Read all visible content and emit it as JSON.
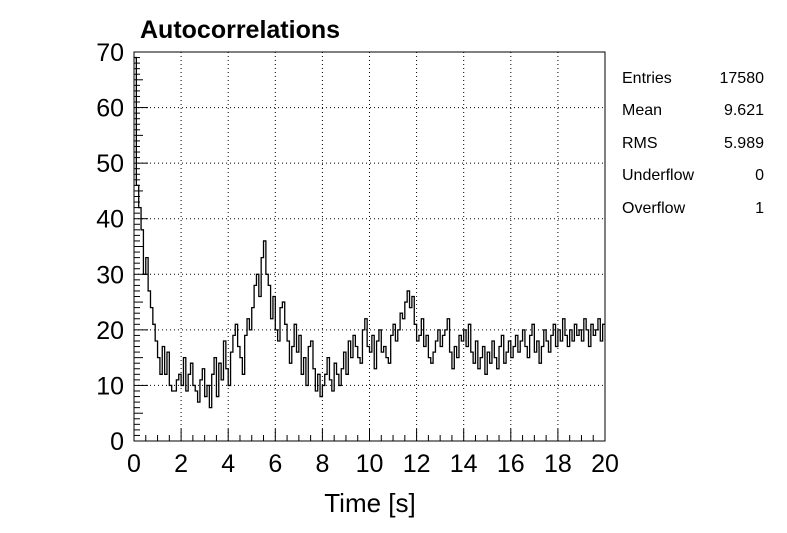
{
  "chart_data": {
    "type": "line",
    "title": "Autocorrelations",
    "xlabel": "Time [s]",
    "ylabel": "",
    "xlim": [
      0,
      20
    ],
    "ylim": [
      0,
      70
    ],
    "xticks": [
      0,
      2,
      4,
      6,
      8,
      10,
      12,
      14,
      16,
      18,
      20
    ],
    "yticks": [
      0,
      10,
      20,
      30,
      40,
      50,
      60,
      70
    ],
    "grid": true,
    "style": "step histogram",
    "x": [
      0.0,
      0.1,
      0.2,
      0.3,
      0.4,
      0.5,
      0.6,
      0.7,
      0.8,
      0.9,
      1.0,
      1.1,
      1.2,
      1.3,
      1.4,
      1.5,
      1.6,
      1.7,
      1.8,
      1.9,
      2.0,
      2.1,
      2.2,
      2.3,
      2.4,
      2.5,
      2.6,
      2.7,
      2.8,
      2.9,
      3.0,
      3.1,
      3.2,
      3.3,
      3.4,
      3.5,
      3.6,
      3.7,
      3.8,
      3.9,
      4.0,
      4.1,
      4.2,
      4.3,
      4.4,
      4.5,
      4.6,
      4.7,
      4.8,
      4.9,
      5.0,
      5.1,
      5.2,
      5.3,
      5.4,
      5.5,
      5.6,
      5.7,
      5.8,
      5.9,
      6.0,
      6.1,
      6.2,
      6.3,
      6.4,
      6.5,
      6.6,
      6.7,
      6.8,
      6.9,
      7.0,
      7.1,
      7.2,
      7.3,
      7.4,
      7.5,
      7.6,
      7.7,
      7.8,
      7.9,
      8.0,
      8.1,
      8.2,
      8.3,
      8.4,
      8.5,
      8.6,
      8.7,
      8.8,
      8.9,
      9.0,
      9.1,
      9.2,
      9.3,
      9.4,
      9.5,
      9.6,
      9.7,
      9.8,
      9.9,
      10.0,
      10.1,
      10.2,
      10.3,
      10.4,
      10.5,
      10.6,
      10.7,
      10.8,
      10.9,
      11.0,
      11.1,
      11.2,
      11.3,
      11.4,
      11.5,
      11.6,
      11.7,
      11.8,
      11.9,
      12.0,
      12.1,
      12.2,
      12.3,
      12.4,
      12.5,
      12.6,
      12.7,
      12.8,
      12.9,
      13.0,
      13.1,
      13.2,
      13.3,
      13.4,
      13.5,
      13.6,
      13.7,
      13.8,
      13.9,
      14.0,
      14.1,
      14.2,
      14.3,
      14.4,
      14.5,
      14.6,
      14.7,
      14.8,
      14.9,
      15.0,
      15.1,
      15.2,
      15.3,
      15.4,
      15.5,
      15.6,
      15.7,
      15.8,
      15.9,
      16.0,
      16.1,
      16.2,
      16.3,
      16.4,
      16.5,
      16.6,
      16.7,
      16.8,
      16.9,
      17.0,
      17.1,
      17.2,
      17.3,
      17.4,
      17.5,
      17.6,
      17.7,
      17.8,
      17.9,
      18.0,
      18.1,
      18.2,
      18.3,
      18.4,
      18.5,
      18.6,
      18.7,
      18.8,
      18.9,
      19.0,
      19.1,
      19.2,
      19.3,
      19.4,
      19.5,
      19.6,
      19.7,
      19.8,
      19.9
    ],
    "values": [
      69,
      46,
      42,
      38,
      30,
      33,
      27,
      24,
      21,
      18,
      15,
      12,
      17,
      12,
      16,
      10,
      9,
      9,
      11,
      12,
      10,
      15,
      9,
      12,
      14,
      10,
      9,
      7,
      11,
      13,
      8,
      10,
      6,
      12,
      15,
      8,
      14,
      11,
      18,
      13,
      10,
      16,
      19,
      21,
      17,
      15,
      12,
      19,
      22,
      20,
      24,
      28,
      30,
      26,
      33,
      36,
      30,
      28,
      22,
      26,
      20,
      18,
      24,
      25,
      21,
      18,
      14,
      17,
      21,
      16,
      19,
      12,
      15,
      10,
      17,
      18,
      13,
      9,
      12,
      8,
      10,
      12,
      15,
      11,
      9,
      14,
      12,
      10,
      13,
      16,
      12,
      18,
      15,
      19,
      17,
      15,
      14,
      20,
      22,
      17,
      16,
      19,
      13,
      18,
      20,
      16,
      17,
      15,
      14,
      19,
      21,
      18,
      20,
      23,
      22,
      25,
      27,
      24,
      26,
      21,
      18,
      19,
      22,
      17,
      19,
      15,
      14,
      16,
      18,
      20,
      17,
      19,
      20,
      22,
      16,
      13,
      17,
      15,
      19,
      18,
      20,
      17,
      21,
      16,
      14,
      18,
      13,
      15,
      17,
      12,
      16,
      14,
      18,
      15,
      13,
      17,
      19,
      14,
      16,
      18,
      15,
      17,
      19,
      16,
      18,
      20,
      17,
      15,
      19,
      21,
      16,
      18,
      14,
      17,
      20,
      18,
      16,
      19,
      21,
      17,
      20,
      18,
      22,
      19,
      17,
      20,
      18,
      21,
      19,
      20,
      18,
      22,
      20,
      17,
      21,
      19,
      20,
      22,
      18,
      21
    ]
  },
  "stats": [
    {
      "label": "Entries",
      "value": "17580"
    },
    {
      "label": "Mean",
      "value": "9.621"
    },
    {
      "label": "RMS",
      "value": "5.989"
    },
    {
      "label": "Underflow",
      "value": "0"
    },
    {
      "label": "Overflow",
      "value": "1"
    }
  ]
}
